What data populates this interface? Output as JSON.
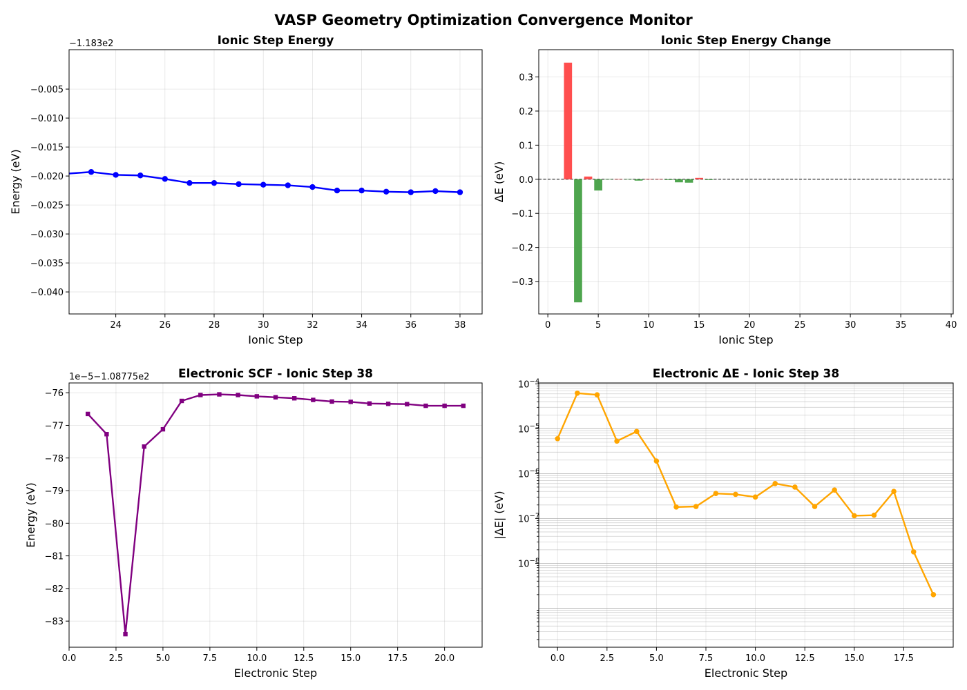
{
  "figure_title": "VASP Geometry Optimization Convergence Monitor",
  "chart_data": [
    {
      "id": "p1",
      "type": "line",
      "title": "Ionic Step Energy",
      "xlabel": "Ionic Step",
      "ylabel": "Energy (eV)",
      "offset_text": "−1.183e2",
      "xlim": [
        22.1,
        38.9
      ],
      "ylim": [
        -0.0438,
        0.0018
      ],
      "xticks": [
        24,
        26,
        28,
        30,
        32,
        34,
        36,
        38
      ],
      "xtick_labels": [
        "24",
        "26",
        "28",
        "30",
        "32",
        "34",
        "36",
        "38"
      ],
      "yticks": [
        -0.005,
        -0.01,
        -0.015,
        -0.02,
        -0.025,
        -0.03,
        -0.035,
        -0.04
      ],
      "ytick_labels": [
        "−0.005",
        "−0.010",
        "−0.015",
        "−0.020",
        "−0.025",
        "−0.030",
        "−0.035",
        "−0.040"
      ],
      "grid": true,
      "color": "#0000ff",
      "x": [
        22,
        23,
        24,
        25,
        26,
        27,
        28,
        29,
        30,
        31,
        32,
        33,
        34,
        35,
        36,
        37,
        38
      ],
      "y": [
        -0.0196,
        -0.0193,
        -0.0198,
        -0.0199,
        -0.0205,
        -0.0212,
        -0.0212,
        -0.0214,
        -0.0215,
        -0.0216,
        -0.0219,
        -0.0225,
        -0.0225,
        -0.0227,
        -0.0228,
        -0.0226,
        -0.0228
      ]
    },
    {
      "id": "p2",
      "type": "bar",
      "title": "Ionic Step Energy Change",
      "xlabel": "Ionic Step",
      "ylabel": "ΔE (eV)",
      "xlim": [
        -0.9,
        40.2
      ],
      "ylim": [
        -0.395,
        0.38
      ],
      "xticks": [
        0,
        5,
        10,
        15,
        20,
        25,
        30,
        35,
        40
      ],
      "xtick_labels": [
        "0",
        "5",
        "10",
        "15",
        "20",
        "25",
        "30",
        "35",
        "40"
      ],
      "yticks": [
        0.3,
        0.2,
        0.1,
        0.0,
        -0.1,
        -0.2,
        -0.3
      ],
      "ytick_labels": [
        "0.3",
        "0.2",
        "0.1",
        "0.0",
        "−0.1",
        "−0.2",
        "−0.3"
      ],
      "grid": true,
      "zero_line": true,
      "positive_color": "#ff4444",
      "negative_color": "#44a044",
      "x": [
        2,
        3,
        4,
        5,
        6,
        7,
        8,
        9,
        10,
        11,
        12,
        13,
        14,
        15,
        16
      ],
      "values": [
        0.342,
        -0.361,
        0.008,
        -0.033,
        -0.001,
        0.0,
        -0.001,
        -0.004,
        0.0,
        0.0,
        -0.002,
        -0.009,
        -0.01,
        0.004,
        -0.002
      ]
    },
    {
      "id": "p3",
      "type": "line",
      "title": "Electronic SCF - Ionic Step 38",
      "xlabel": "Electronic Step",
      "ylabel": "Energy (eV)",
      "offset_text": "1e−5−1.08775e2",
      "xlim": [
        0,
        22
      ],
      "ylim": [
        -83.8,
        -75.7
      ],
      "xticks": [
        0,
        2.5,
        5,
        7.5,
        10,
        12.5,
        15,
        17.5,
        20
      ],
      "xtick_labels": [
        "0.0",
        "2.5",
        "5.0",
        "7.5",
        "10.0",
        "12.5",
        "15.0",
        "17.5",
        "20.0"
      ],
      "yticks": [
        -76,
        -77,
        -78,
        -79,
        -80,
        -81,
        -82,
        -83
      ],
      "ytick_labels": [
        "−76",
        "−77",
        "−78",
        "−79",
        "−80",
        "−81",
        "−82",
        "−83"
      ],
      "grid": true,
      "color": "#800080",
      "marker": "square",
      "x": [
        1,
        2,
        3,
        4,
        5,
        6,
        7,
        8,
        9,
        10,
        11,
        12,
        13,
        14,
        15,
        16,
        17,
        18,
        19,
        20,
        21
      ],
      "y": [
        -76.65,
        -77.27,
        -83.4,
        -77.65,
        -77.12,
        -76.25,
        -76.07,
        -76.05,
        -76.07,
        -76.11,
        -76.14,
        -76.17,
        -76.22,
        -76.27,
        -76.28,
        -76.33,
        -76.34,
        -76.35,
        -76.4,
        -76.4,
        -76.4
      ]
    },
    {
      "id": "p4",
      "type": "line",
      "title": "Electronic ΔE - Ionic Step 38",
      "xlabel": "Electronic Step",
      "ylabel": "|ΔE| (eV)",
      "yscale": "log",
      "xlim": [
        -0.95,
        20.0
      ],
      "ylim_log10": [
        -9.87,
        -3.98
      ],
      "xticks": [
        0,
        2.5,
        5,
        7.5,
        10,
        12.5,
        15,
        17.5
      ],
      "xtick_labels": [
        "0.0",
        "2.5",
        "5.0",
        "7.5",
        "10.0",
        "12.5",
        "15.0",
        "17.5"
      ],
      "ytick_exponents": [
        -4,
        -5,
        -6,
        -7,
        -8
      ],
      "ytick_labels": [
        "10",
        "10",
        "10",
        "10",
        "10"
      ],
      "ytick_sups": [
        "−4",
        "−5",
        "−6",
        "−7",
        "−8"
      ],
      "grid": true,
      "color": "#ffa500",
      "x": [
        0,
        1,
        2,
        3,
        4,
        5,
        6,
        7,
        8,
        9,
        10,
        11,
        12,
        13,
        14,
        15,
        16,
        17,
        18,
        19
      ],
      "y": [
        6e-06,
        6.2e-05,
        5.7e-05,
        5.3e-06,
        8.7e-06,
        1.9e-06,
        1.8e-07,
        1.85e-07,
        3.6e-07,
        3.45e-07,
        3e-07,
        6e-07,
        5e-07,
        1.85e-07,
        4.3e-07,
        1.15e-07,
        1.18e-07,
        4e-07,
        1.8e-08,
        2e-09
      ]
    }
  ]
}
